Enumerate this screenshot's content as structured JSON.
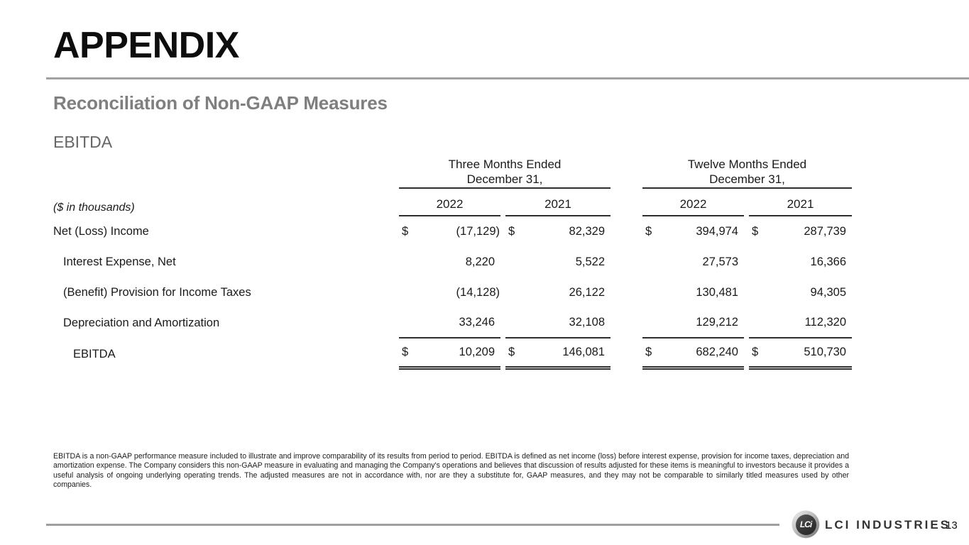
{
  "slide": {
    "title": "APPENDIX",
    "subtitle": "Reconciliation of Non-GAAP Measures",
    "section_label": "EBITDA"
  },
  "table": {
    "units_label": "($ in thousands)",
    "currency_symbol": "$",
    "column_groups": [
      {
        "line1": "Three Months Ended",
        "line2": "December 31,"
      },
      {
        "line1": "Twelve Months Ended",
        "line2": "December 31,"
      }
    ],
    "year_headers": [
      "2022",
      "2021",
      "2022",
      "2021"
    ],
    "rows": [
      {
        "label": "Net (Loss) Income",
        "values": [
          "(17,129)",
          "82,329",
          "394,974",
          "287,739"
        ]
      },
      {
        "label": "Interest Expense, Net",
        "values": [
          "8,220",
          "5,522",
          "27,573",
          "16,366"
        ]
      },
      {
        "label": "(Benefit) Provision for Income Taxes",
        "values": [
          "(14,128)",
          "26,122",
          "130,481",
          "94,305"
        ]
      },
      {
        "label": "Depreciation and Amortization",
        "values": [
          "33,246",
          "32,108",
          "129,212",
          "112,320"
        ]
      },
      {
        "label": "EBITDA",
        "values": [
          "10,209",
          "146,081",
          "682,240",
          "510,730"
        ]
      }
    ]
  },
  "footnote": "EBITDA is a non-GAAP performance measure included to illustrate and improve comparability of its results from period to period. EBITDA is defined as net income (loss) before interest expense, provision for income taxes, depreciation and amortization expense. The Company considers this non-GAAP measure in evaluating and managing the Company's operations and believes that discussion of results adjusted for these items is meaningful to investors because it provides a useful analysis of ongoing underlying operating trends. The adjusted measures are not in accordance with, nor are they a substitute for, GAAP measures, and they may not be comparable to similarly titled measures used by other companies.",
  "footer": {
    "brand": "LCI INDUSTRIES",
    "logo_monogram": "LCi",
    "page_number": "13"
  },
  "colors": {
    "subtitle_gray": "#7f7f7f",
    "divider_gray": "#a1a1a1",
    "text": "#1a1a1a",
    "title": "#0d0d0d"
  }
}
